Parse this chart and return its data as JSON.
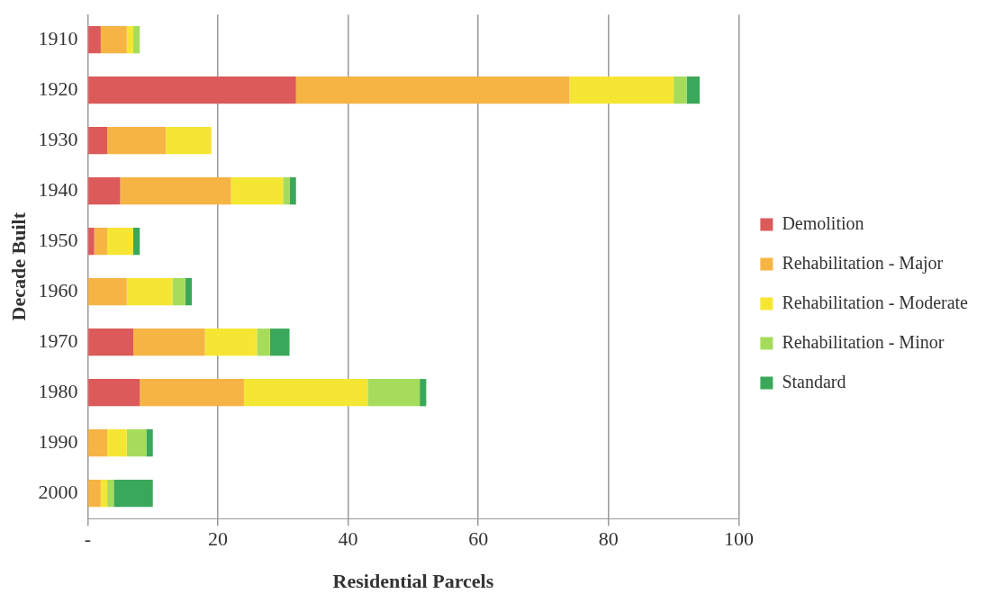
{
  "chart_data": {
    "type": "bar",
    "orientation": "horizontal",
    "stacked": true,
    "xlabel": "Residential Parcels",
    "ylabel": "Decade Built",
    "categories": [
      "1910",
      "1920",
      "1930",
      "1940",
      "1950",
      "1960",
      "1970",
      "1980",
      "1990",
      "2000"
    ],
    "series": [
      {
        "name": "Demolition",
        "color": "#dc5a5a",
        "values": [
          2,
          32,
          3,
          5,
          1,
          0,
          7,
          8,
          0,
          0
        ]
      },
      {
        "name": "Rehabilitation - Major",
        "color": "#f6b445",
        "values": [
          4,
          42,
          9,
          17,
          2,
          6,
          11,
          16,
          3,
          2
        ]
      },
      {
        "name": "Rehabilitation - Moderate",
        "color": "#f6e634",
        "values": [
          1,
          16,
          7,
          8,
          4,
          7,
          8,
          19,
          3,
          1
        ]
      },
      {
        "name": "Rehabilitation - Minor",
        "color": "#a6dc5c",
        "values": [
          1,
          2,
          0,
          1,
          0,
          2,
          2,
          8,
          3,
          1
        ]
      },
      {
        "name": "Standard",
        "color": "#3aa85a",
        "values": [
          0,
          2,
          0,
          1,
          1,
          1,
          3,
          1,
          1,
          6
        ]
      }
    ],
    "xlim": [
      0,
      100
    ],
    "xticks": [
      {
        "value": 0,
        "label": "-"
      },
      20,
      40,
      60,
      80,
      100
    ],
    "grid": "x",
    "legend": "right"
  }
}
